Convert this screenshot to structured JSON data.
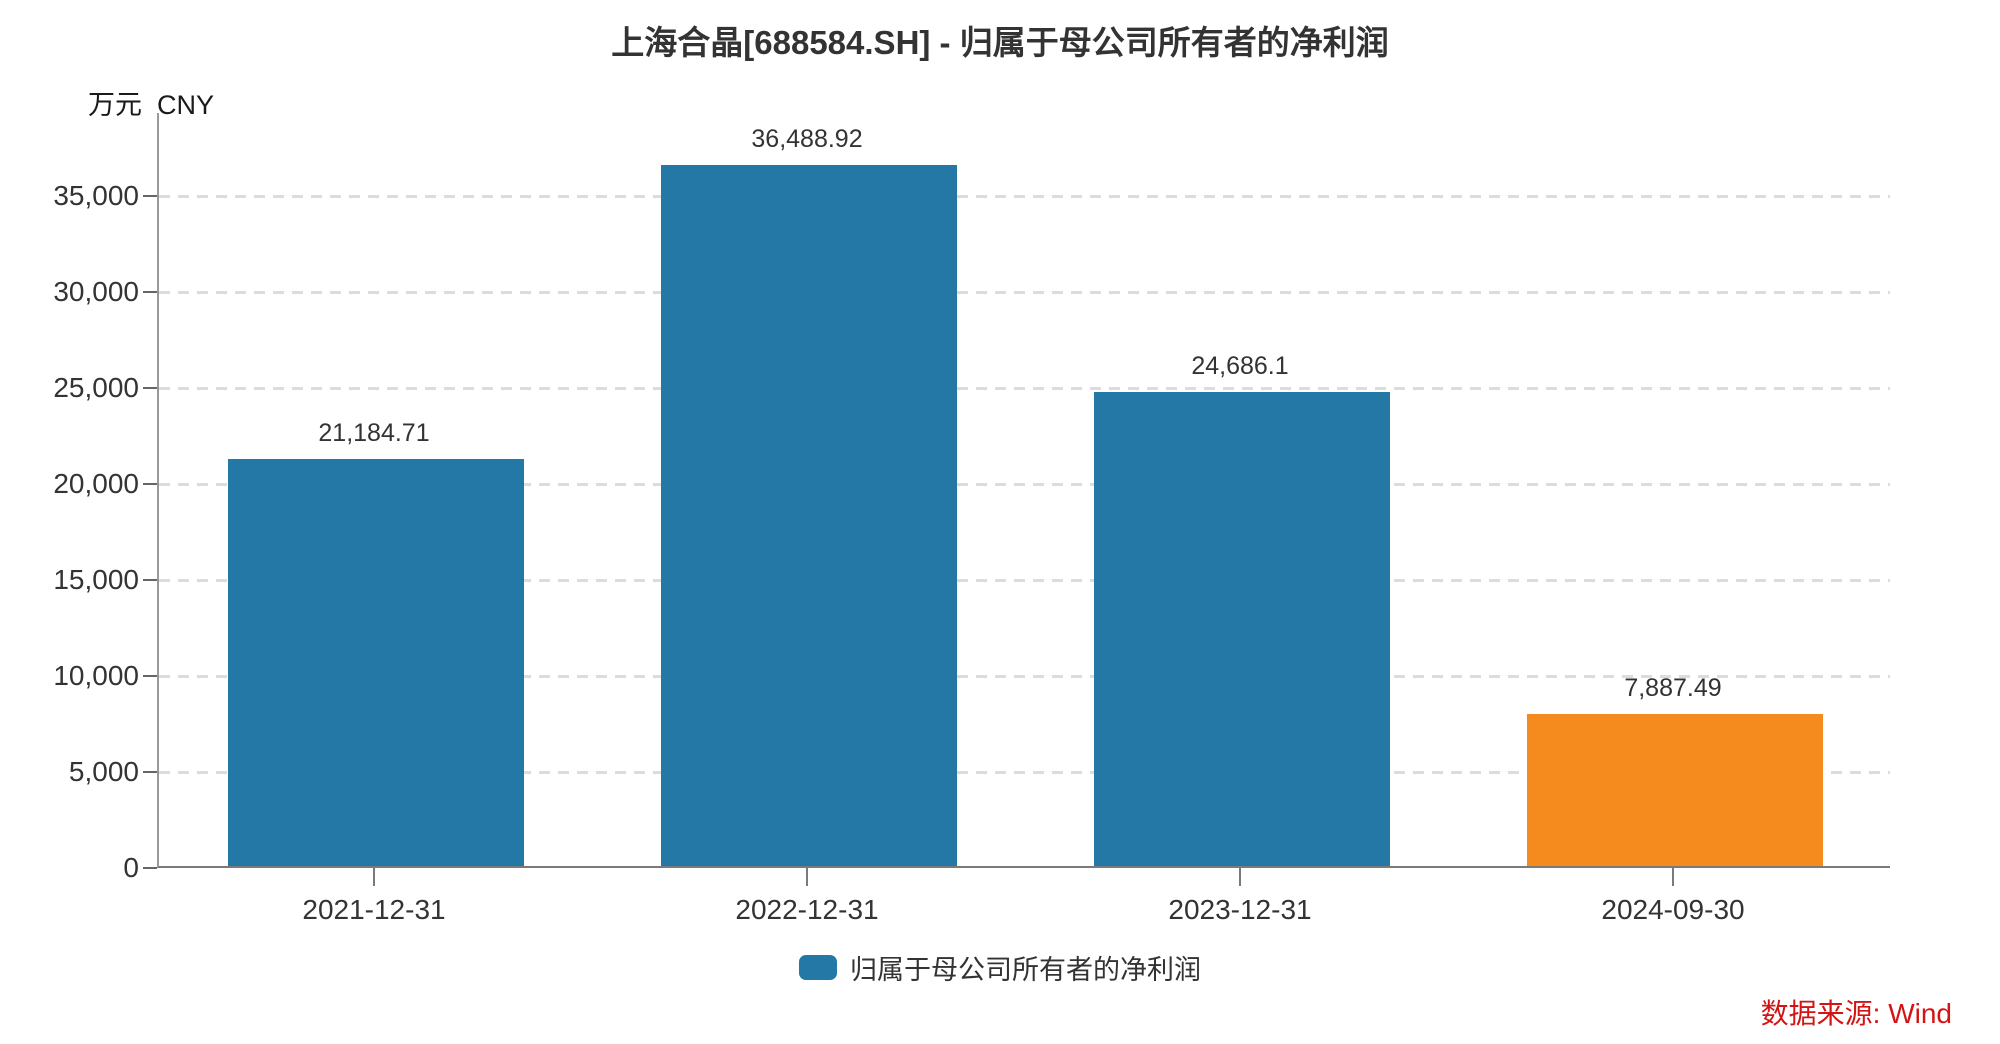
{
  "page": {
    "title": "上海合晶[688584.SH] - 归属于母公司所有者的净利润",
    "source_label": "数据来源: Wind",
    "unit_label": "万元  CNY"
  },
  "colors": {
    "bar_blue": "#2478a6",
    "bar_orange": "#f58b1f",
    "source_red": "#d21414",
    "label_gray": "#333333",
    "gridline_gray": "#dcdcdc"
  },
  "chart_data": {
    "type": "bar",
    "title": "上海合晶[688584.SH] - 归属于母公司所有者的净利润",
    "unit_label": "万元  CNY",
    "categories": [
      "2021-12-31",
      "2022-12-31",
      "2023-12-31",
      "2024-09-30"
    ],
    "series": [
      {
        "name": "归属于母公司所有者的净利润",
        "values": [
          21184.71,
          36488.92,
          24686.1,
          7887.49
        ]
      }
    ],
    "value_labels": [
      "21,184.71",
      "36,488.92",
      "24,686.1",
      "7,887.49"
    ],
    "bar_colors": [
      "#2478a6",
      "#2478a6",
      "#2478a6",
      "#f58b1f"
    ],
    "y_ticks": [
      0,
      5000,
      10000,
      15000,
      20000,
      25000,
      30000,
      35000
    ],
    "y_tick_labels": [
      "0",
      "5,000",
      "10,000",
      "15,000",
      "20,000",
      "25,000",
      "30,000",
      "35,000"
    ],
    "ylim": [
      0,
      39300
    ],
    "ylabel": "万元 CNY",
    "xlabel": "",
    "grid": "horizontal-dashed",
    "legend": [
      {
        "label": "归属于母公司所有者的净利润",
        "color": "#2478a6"
      }
    ],
    "legend_position": "bottom-center",
    "source": "数据来源: Wind"
  }
}
